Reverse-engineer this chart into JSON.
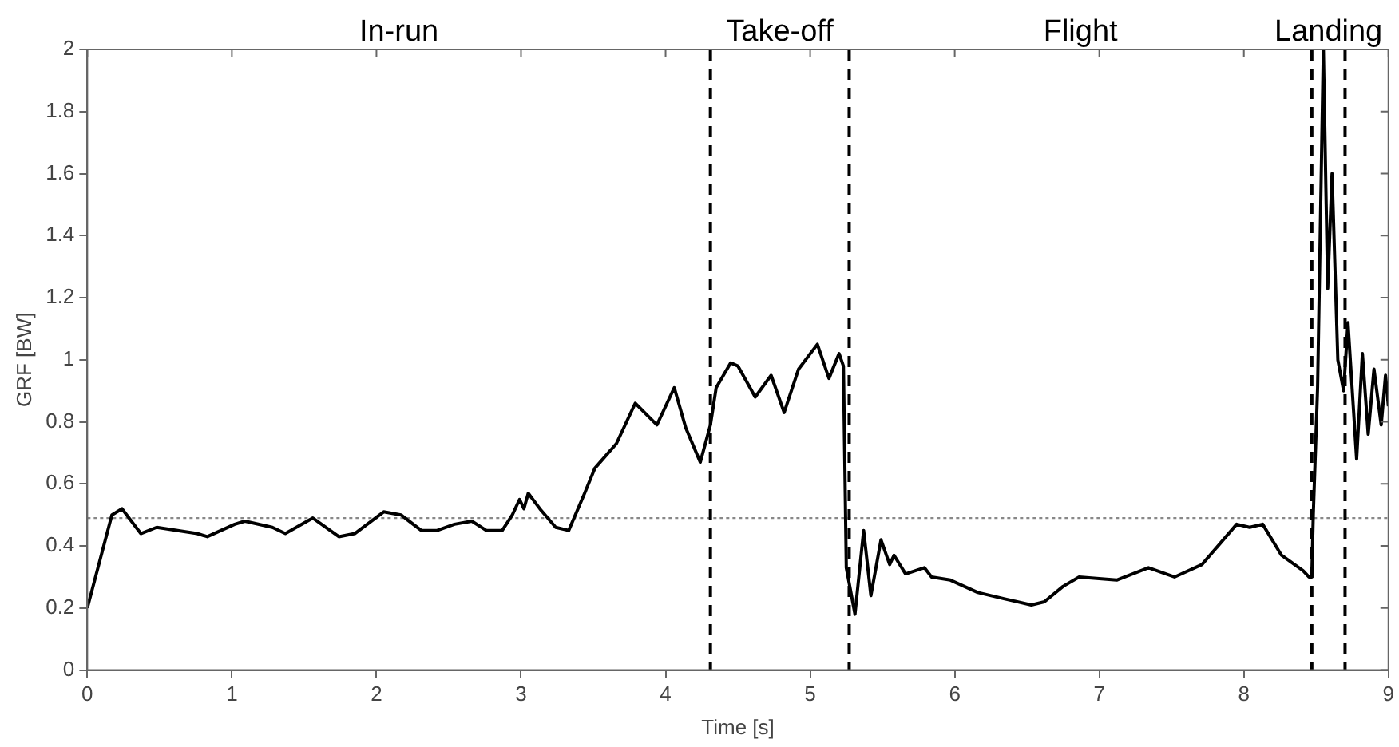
{
  "chart_data": {
    "type": "line",
    "xlabel": "Time [s]",
    "ylabel": "GRF [BW]",
    "x": [
      0,
      0.17,
      0.24,
      0.37,
      0.48,
      0.76,
      0.83,
      1.02,
      1.09,
      1.28,
      1.37,
      1.56,
      1.74,
      1.85,
      2.05,
      2.17,
      2.31,
      2.42,
      2.54,
      2.66,
      2.76,
      2.87,
      2.94,
      2.99,
      3.02,
      3.05,
      3.13,
      3.24,
      3.33,
      3.44,
      3.51,
      3.66,
      3.79,
      3.94,
      4.06,
      4.14,
      4.24,
      4.31,
      4.35,
      4.45,
      4.5,
      4.62,
      4.73,
      4.82,
      4.92,
      5.05,
      5.13,
      5.2,
      5.23,
      5.25,
      5.31,
      5.37,
      5.42,
      5.49,
      5.55,
      5.58,
      5.66,
      5.79,
      5.84,
      5.97,
      6.16,
      6.34,
      6.53,
      6.62,
      6.75,
      6.86,
      7.12,
      7.34,
      7.52,
      7.71,
      7.95,
      8.04,
      8.13,
      8.26,
      8.41,
      8.45,
      8.47,
      8.48,
      8.51,
      8.55,
      8.58,
      8.61,
      8.65,
      8.69,
      8.72,
      8.78,
      8.82,
      8.86,
      8.9,
      8.95,
      8.98,
      9
    ],
    "series": [
      {
        "color": "#000000",
        "values": [
          0.2,
          0.5,
          0.52,
          0.44,
          0.46,
          0.44,
          0.43,
          0.47,
          0.48,
          0.46,
          0.44,
          0.49,
          0.43,
          0.44,
          0.51,
          0.5,
          0.45,
          0.45,
          0.47,
          0.48,
          0.45,
          0.45,
          0.5,
          0.55,
          0.52,
          0.57,
          0.52,
          0.46,
          0.45,
          0.57,
          0.65,
          0.73,
          0.86,
          0.79,
          0.91,
          0.78,
          0.67,
          0.79,
          0.91,
          0.99,
          0.98,
          0.88,
          0.95,
          0.83,
          0.97,
          1.05,
          0.94,
          1.02,
          0.98,
          0.33,
          0.18,
          0.45,
          0.24,
          0.42,
          0.34,
          0.37,
          0.31,
          0.33,
          0.3,
          0.29,
          0.25,
          0.23,
          0.21,
          0.22,
          0.27,
          0.3,
          0.29,
          0.33,
          0.3,
          0.34,
          0.47,
          0.46,
          0.47,
          0.37,
          0.32,
          0.3,
          0.3,
          0.5,
          0.91,
          2,
          1.23,
          1.6,
          1,
          0.9,
          1.12,
          0.68,
          1.02,
          0.76,
          0.97,
          0.79,
          0.95,
          0.85
        ]
      }
    ],
    "xlim": [
      0,
      9
    ],
    "xticks": [
      0,
      1,
      2,
      3,
      4,
      5,
      6,
      7,
      8,
      9
    ],
    "ylim": [
      0,
      2
    ],
    "yticks": [
      0,
      0.2,
      0.4,
      0.6,
      0.8,
      1,
      1.2,
      1.4,
      1.6,
      1.8,
      2
    ],
    "grid": false,
    "legend": false,
    "marker": "none",
    "line_style": "solid",
    "ref_lines": [
      {
        "axis": "y",
        "value": 0.49,
        "color": "#888888",
        "line_style": "dotted"
      },
      {
        "axis": "x",
        "value": 4.31,
        "color": "#000000",
        "line_style": "dashed"
      },
      {
        "axis": "x",
        "value": 5.27,
        "color": "#000000",
        "line_style": "dashed"
      },
      {
        "axis": "x",
        "value": 8.47,
        "color": "#000000",
        "line_style": "dashed"
      },
      {
        "axis": "x",
        "value": 8.7,
        "color": "#000000",
        "line_style": "dashed"
      }
    ],
    "annotations": [
      "In-run",
      "Take-off",
      "Flight",
      "Landing"
    ]
  }
}
